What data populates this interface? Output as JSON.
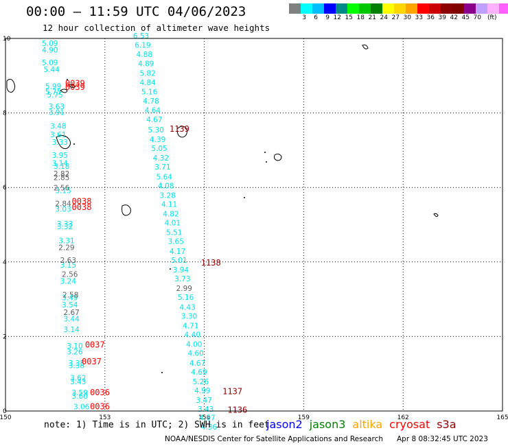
{
  "header": {
    "title": "00:00 – 11:59 UTC 04/06/2023",
    "subtitle": "12 hour collection of altimeter wave heights"
  },
  "color_scale": {
    "colors": [
      "#808080",
      "#00ffff",
      "#00bfff",
      "#0000ff",
      "#008b8b",
      "#00ff00",
      "#00c800",
      "#008000",
      "#ffff00",
      "#ffd700",
      "#ffa500",
      "#ff0000",
      "#cd0000",
      "#8b0000",
      "#800000",
      "#8b008b",
      "#c0a0ff",
      "#ffb0ff",
      "#ff60ff",
      "#000000"
    ],
    "labels": [
      "3",
      "6",
      "9",
      "12",
      "15",
      "18",
      "21",
      "24",
      "27",
      "30",
      "33",
      "36",
      "39",
      "42",
      "45",
      "70"
    ],
    "unit": "(ft)"
  },
  "axes": {
    "x_ticks": [
      "150",
      "153",
      "156",
      "159",
      "162",
      "165"
    ],
    "y_ticks": [
      "0",
      "2",
      "4",
      "6",
      "8",
      "10"
    ],
    "x_range": [
      150,
      165
    ],
    "y_range": [
      0,
      10
    ]
  },
  "tracks": [
    {
      "satellite": "jason3",
      "color": "#00e0e8",
      "readings": [
        {
          "lon": 151.1,
          "lat": 9.8,
          "swh": "5.09"
        },
        {
          "lon": 151.1,
          "lat": 9.62,
          "swh": "4.90"
        },
        {
          "lon": 151.1,
          "lat": 9.28,
          "swh": "5.09"
        },
        {
          "lon": 151.15,
          "lat": 9.1,
          "swh": "5.44"
        },
        {
          "lon": 151.2,
          "lat": 8.65,
          "swh": "5.99"
        },
        {
          "lon": 151.2,
          "lat": 8.5,
          "swh": "5.75"
        },
        {
          "lon": 151.25,
          "lat": 8.42,
          "swh": "5.75"
        },
        {
          "lon": 151.3,
          "lat": 8.1,
          "swh": "3.63"
        },
        {
          "lon": 151.3,
          "lat": 7.95,
          "swh": "3.91"
        },
        {
          "lon": 151.35,
          "lat": 7.58,
          "swh": "3.48"
        },
        {
          "lon": 151.35,
          "lat": 7.35,
          "swh": "3.61"
        },
        {
          "lon": 151.4,
          "lat": 7.15,
          "swh": "3.33"
        },
        {
          "lon": 151.4,
          "lat": 6.8,
          "swh": "3.95"
        },
        {
          "lon": 151.4,
          "lat": 6.58,
          "swh": "3.14"
        },
        {
          "lon": 151.45,
          "lat": 6.5,
          "swh": "3.18"
        },
        {
          "lon": 151.5,
          "lat": 5.85,
          "swh": "3.15"
        },
        {
          "lon": 151.5,
          "lat": 5.35,
          "swh": "3.03"
        },
        {
          "lon": 151.55,
          "lat": 4.95,
          "swh": "3.33"
        },
        {
          "lon": 151.55,
          "lat": 4.88,
          "swh": "3.32"
        },
        {
          "lon": 151.6,
          "lat": 4.5,
          "swh": "3.31"
        },
        {
          "lon": 151.65,
          "lat": 3.85,
          "swh": "3.15"
        },
        {
          "lon": 151.65,
          "lat": 3.42,
          "swh": "3.24"
        },
        {
          "lon": 151.7,
          "lat": 2.97,
          "swh": "3.49"
        },
        {
          "lon": 151.7,
          "lat": 2.78,
          "swh": "3.54"
        },
        {
          "lon": 151.75,
          "lat": 2.4,
          "swh": "3.44"
        },
        {
          "lon": 151.75,
          "lat": 2.12,
          "swh": "3.14"
        },
        {
          "lon": 151.85,
          "lat": 1.68,
          "swh": "3.10"
        },
        {
          "lon": 151.85,
          "lat": 1.52,
          "swh": "3.26"
        },
        {
          "lon": 151.9,
          "lat": 1.22,
          "swh": "3.35"
        },
        {
          "lon": 151.9,
          "lat": 1.15,
          "swh": "3.38"
        },
        {
          "lon": 151.95,
          "lat": 0.82,
          "swh": "3.62"
        },
        {
          "lon": 151.95,
          "lat": 0.72,
          "swh": "3.43"
        },
        {
          "lon": 152.0,
          "lat": 0.42,
          "swh": "3.59"
        },
        {
          "lon": 152.0,
          "lat": 0.33,
          "swh": "3.60"
        },
        {
          "lon": 152.05,
          "lat": 0.05,
          "swh": "3.06"
        }
      ]
    },
    {
      "satellite": "jason3-gray",
      "color": "#606060",
      "readings": [
        {
          "lon": 151.45,
          "lat": 6.3,
          "swh": "2.82"
        },
        {
          "lon": 151.45,
          "lat": 6.2,
          "swh": "2.85"
        },
        {
          "lon": 151.45,
          "lat": 5.92,
          "swh": "2.56"
        },
        {
          "lon": 151.5,
          "lat": 5.5,
          "swh": "2.84"
        },
        {
          "lon": 151.6,
          "lat": 4.32,
          "swh": "2.29"
        },
        {
          "lon": 151.65,
          "lat": 3.98,
          "swh": "2.63"
        },
        {
          "lon": 151.7,
          "lat": 3.6,
          "swh": "2.56"
        },
        {
          "lon": 151.72,
          "lat": 3.05,
          "swh": "2.58"
        },
        {
          "lon": 151.75,
          "lat": 2.58,
          "swh": "2.67"
        }
      ]
    },
    {
      "satellite": "jason3",
      "color": "#00e0e8",
      "readings": [
        {
          "lon": 153.85,
          "lat": 10.0,
          "swh": "6.53"
        },
        {
          "lon": 153.9,
          "lat": 9.75,
          "swh": "6.19"
        },
        {
          "lon": 153.95,
          "lat": 9.5,
          "swh": "4.88"
        },
        {
          "lon": 154.0,
          "lat": 9.25,
          "swh": "4.89"
        },
        {
          "lon": 154.05,
          "lat": 9.0,
          "swh": "5.82"
        },
        {
          "lon": 154.05,
          "lat": 8.75,
          "swh": "4.84"
        },
        {
          "lon": 154.1,
          "lat": 8.5,
          "swh": "5.16"
        },
        {
          "lon": 154.15,
          "lat": 8.25,
          "swh": "4.78"
        },
        {
          "lon": 154.2,
          "lat": 8.0,
          "swh": "4.64"
        },
        {
          "lon": 154.25,
          "lat": 7.75,
          "swh": "4.67"
        },
        {
          "lon": 154.3,
          "lat": 7.48,
          "swh": "5.30"
        },
        {
          "lon": 154.35,
          "lat": 7.22,
          "swh": "4.39"
        },
        {
          "lon": 154.4,
          "lat": 6.98,
          "swh": "5.05"
        },
        {
          "lon": 154.45,
          "lat": 6.72,
          "swh": "4.32"
        },
        {
          "lon": 154.5,
          "lat": 6.48,
          "swh": "3.71"
        },
        {
          "lon": 154.55,
          "lat": 6.22,
          "swh": "5.64"
        },
        {
          "lon": 154.6,
          "lat": 5.98,
          "swh": "4.08"
        },
        {
          "lon": 154.65,
          "lat": 5.72,
          "swh": "3.28"
        },
        {
          "lon": 154.7,
          "lat": 5.48,
          "swh": "4.11"
        },
        {
          "lon": 154.75,
          "lat": 5.22,
          "swh": "4.82"
        },
        {
          "lon": 154.8,
          "lat": 4.98,
          "swh": "4.01"
        },
        {
          "lon": 154.85,
          "lat": 4.72,
          "swh": "5.51"
        },
        {
          "lon": 154.9,
          "lat": 4.48,
          "swh": "3.65"
        },
        {
          "lon": 154.95,
          "lat": 4.22,
          "swh": "4.17"
        },
        {
          "lon": 155.0,
          "lat": 3.98,
          "swh": "5.01"
        },
        {
          "lon": 155.05,
          "lat": 3.72,
          "swh": "3.94"
        },
        {
          "lon": 155.1,
          "lat": 3.48,
          "swh": "3.73"
        },
        {
          "lon": 155.2,
          "lat": 2.98,
          "swh": "5.16"
        },
        {
          "lon": 155.25,
          "lat": 2.72,
          "swh": "4.43"
        },
        {
          "lon": 155.3,
          "lat": 2.48,
          "swh": "3.30"
        },
        {
          "lon": 155.35,
          "lat": 2.22,
          "swh": "4.71"
        },
        {
          "lon": 155.4,
          "lat": 1.98,
          "swh": "4.40"
        },
        {
          "lon": 155.45,
          "lat": 1.72,
          "swh": "4.00"
        },
        {
          "lon": 155.5,
          "lat": 1.48,
          "swh": "4.60"
        },
        {
          "lon": 155.55,
          "lat": 1.22,
          "swh": "4.67"
        },
        {
          "lon": 155.6,
          "lat": 0.98,
          "swh": "4.69"
        },
        {
          "lon": 155.65,
          "lat": 0.72,
          "swh": "5.26"
        },
        {
          "lon": 155.7,
          "lat": 0.48,
          "swh": "4.99"
        },
        {
          "lon": 155.75,
          "lat": 0.22,
          "swh": "3.47"
        },
        {
          "lon": 155.8,
          "lat": -0.02,
          "swh": "3.43"
        },
        {
          "lon": 155.85,
          "lat": -0.25,
          "swh": "4.97"
        },
        {
          "lon": 155.9,
          "lat": -0.5,
          "swh": "4.36"
        }
      ]
    },
    {
      "satellite": "jason3-gray",
      "color": "#606060",
      "readings": [
        {
          "lon": 155.15,
          "lat": 3.22,
          "swh": "2.99"
        }
      ]
    }
  ],
  "pass_times": [
    {
      "text": "0039",
      "color": "#ff0000",
      "lon": 151.8,
      "lat": 8.72
    },
    {
      "text": "0039",
      "color": "#ff0000",
      "lon": 151.8,
      "lat": 8.62
    },
    {
      "text": "0038",
      "color": "#ff0000",
      "lon": 152.0,
      "lat": 5.55
    },
    {
      "text": "0038",
      "color": "#ff0000",
      "lon": 152.0,
      "lat": 5.4
    },
    {
      "text": "0037",
      "color": "#ff0000",
      "lon": 152.4,
      "lat": 1.7
    },
    {
      "text": "0037",
      "color": "#ff0000",
      "lon": 152.3,
      "lat": 1.25
    },
    {
      "text": "0036",
      "color": "#ff0000",
      "lon": 152.55,
      "lat": 0.42
    },
    {
      "text": "0036",
      "color": "#ff0000",
      "lon": 152.55,
      "lat": 0.05
    },
    {
      "text": "1139",
      "color": "#8b0000",
      "lon": 154.95,
      "lat": 7.5
    },
    {
      "text": "1138",
      "color": "#8b0000",
      "lon": 155.9,
      "lat": 3.9
    },
    {
      "text": "1137",
      "color": "#8b0000",
      "lon": 156.55,
      "lat": 0.45
    },
    {
      "text": "1136",
      "color": "#8b0000",
      "lon": 156.7,
      "lat": -0.05
    }
  ],
  "footer": {
    "note": "note: 1) Time is in UTC; 2) SWH is in feet",
    "satellites": [
      {
        "name": "jason2",
        "color": "#0000ff"
      },
      {
        "name": "jason3",
        "color": "#008000"
      },
      {
        "name": "altika",
        "color": "#ffa500"
      },
      {
        "name": "cryosat",
        "color": "#ff0000"
      },
      {
        "name": "s3a",
        "color": "#8b0000"
      }
    ],
    "credit": "NOAA/NESDIS Center for Satellite Applications and Research",
    "generated": "Apr  8 08:32:45 UTC 2023"
  }
}
